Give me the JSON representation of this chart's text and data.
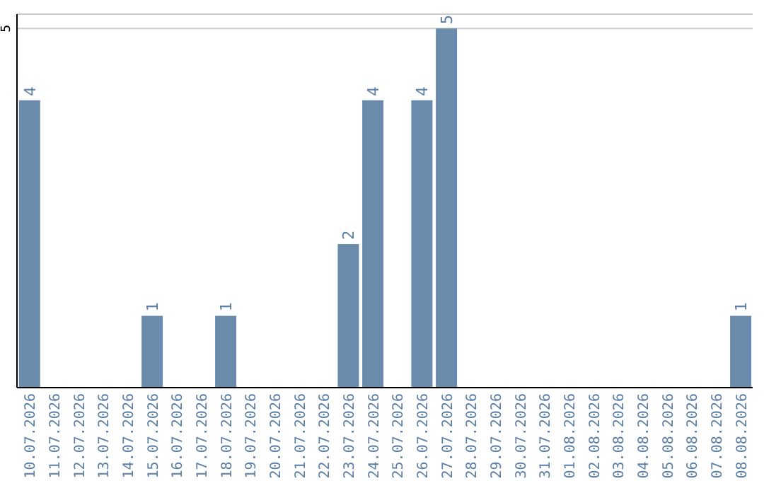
{
  "chart_data": {
    "type": "bar",
    "categories": [
      "10.07.2026",
      "11.07.2026",
      "12.07.2026",
      "13.07.2026",
      "14.07.2026",
      "15.07.2026",
      "16.07.2026",
      "17.07.2026",
      "18.07.2026",
      "19.07.2026",
      "20.07.2026",
      "21.07.2026",
      "22.07.2026",
      "23.07.2026",
      "24.07.2026",
      "25.07.2026",
      "26.07.2026",
      "27.07.2026",
      "28.07.2026",
      "29.07.2026",
      "30.07.2026",
      "31.07.2026",
      "01.08.2026",
      "02.08.2026",
      "03.08.2026",
      "04.08.2026",
      "05.08.2026",
      "06.08.2026",
      "07.08.2026",
      "08.08.2026"
    ],
    "values": [
      4,
      0,
      0,
      0,
      0,
      1,
      0,
      0,
      1,
      0,
      0,
      0,
      0,
      2,
      4,
      0,
      4,
      5,
      0,
      0,
      0,
      0,
      0,
      0,
      0,
      0,
      0,
      0,
      0,
      1
    ],
    "value_labels": [
      "4",
      null,
      null,
      null,
      null,
      "1",
      null,
      null,
      "1",
      null,
      null,
      null,
      null,
      "2",
      "4",
      null,
      "4",
      "5",
      null,
      null,
      null,
      null,
      null,
      null,
      null,
      null,
      null,
      null,
      null,
      "1"
    ],
    "color": "#6a8bab",
    "ylim": [
      0,
      5.2
    ],
    "yticks": [
      5
    ],
    "grid": "y"
  }
}
